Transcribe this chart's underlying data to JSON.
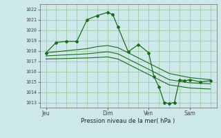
{
  "background_color": "#cce8e8",
  "grid_color": "#88bb88",
  "line_color": "#1a6b1a",
  "ylabel_ticks": [
    1013,
    1014,
    1015,
    1016,
    1017,
    1018,
    1019,
    1020,
    1021,
    1022
  ],
  "ylim": [
    1012.5,
    1022.5
  ],
  "xlabel": "Pression niveau de la mer( hPa )",
  "x_tick_labels": [
    "Jeu",
    "Dim",
    "Ven",
    "Sam"
  ],
  "x_tick_positions": [
    0.0,
    3.0,
    5.0,
    7.0
  ],
  "xlim": [
    -0.3,
    8.3
  ],
  "main_line": {
    "x": [
      0.0,
      0.5,
      1.0,
      1.5,
      2.0,
      2.5,
      3.0,
      3.25,
      3.5,
      4.0,
      4.5,
      5.0,
      5.25,
      5.5,
      5.75,
      6.0,
      6.25,
      6.5,
      6.75,
      7.0,
      7.5,
      8.0
    ],
    "y": [
      1017.8,
      1018.8,
      1018.9,
      1018.9,
      1021.0,
      1021.4,
      1021.7,
      1021.5,
      1020.3,
      1017.9,
      1018.6,
      1017.8,
      1015.5,
      1014.5,
      1013.0,
      1012.9,
      1013.0,
      1015.2,
      1015.1,
      1015.2,
      1015.0,
      1015.1
    ]
  },
  "upper_band": {
    "x": [
      0.0,
      0.5,
      1.0,
      1.5,
      2.0,
      2.5,
      3.0,
      3.5,
      4.0,
      4.5,
      5.0,
      5.5,
      6.0,
      6.5,
      7.0,
      7.5,
      8.0
    ],
    "y": [
      1017.8,
      1017.9,
      1018.0,
      1018.1,
      1018.2,
      1018.4,
      1018.5,
      1018.3,
      1017.8,
      1017.3,
      1016.8,
      1016.3,
      1015.8,
      1015.6,
      1015.4,
      1015.3,
      1015.2
    ]
  },
  "lower_band": {
    "x": [
      0.0,
      0.5,
      1.0,
      1.5,
      2.0,
      2.5,
      3.0,
      3.5,
      4.0,
      4.5,
      5.0,
      5.5,
      6.0,
      6.5,
      7.0,
      7.5,
      8.0
    ],
    "y": [
      1017.5,
      1017.55,
      1017.6,
      1017.65,
      1017.7,
      1017.8,
      1017.9,
      1017.7,
      1017.2,
      1016.7,
      1016.2,
      1015.7,
      1015.2,
      1015.05,
      1014.9,
      1014.85,
      1014.8
    ]
  },
  "third_band": {
    "x": [
      0.0,
      0.5,
      1.0,
      1.5,
      2.0,
      2.5,
      3.0,
      3.5,
      4.0,
      4.5,
      5.0,
      5.5,
      6.0,
      6.5,
      7.0,
      7.5,
      8.0
    ],
    "y": [
      1017.2,
      1017.22,
      1017.25,
      1017.28,
      1017.3,
      1017.35,
      1017.4,
      1017.2,
      1016.7,
      1016.2,
      1015.7,
      1015.2,
      1014.7,
      1014.55,
      1014.4,
      1014.35,
      1014.3
    ]
  },
  "figsize": [
    3.2,
    2.0
  ],
  "dpi": 100
}
